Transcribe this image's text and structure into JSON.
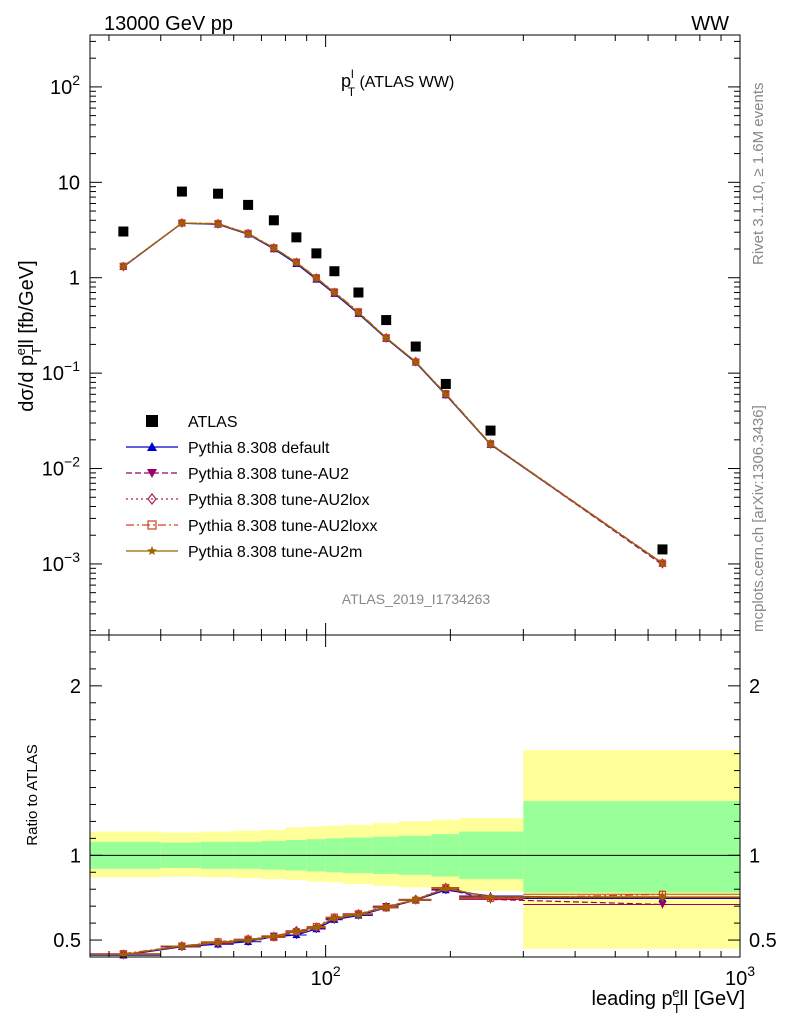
{
  "header": {
    "process": "13000 GeV pp",
    "final_state": "WW",
    "analysis_id": "ATLAS_2019_I1734263",
    "side_top": "Rivet 3.1.10, ≥ 1.6M events",
    "side_bottom": "mcplots.cern.ch [arXiv:1306.3436]"
  },
  "chart_data": [
    {
      "panel": "main",
      "type": "scatter",
      "title": "p_T^l (ATLAS WW)",
      "title_main": "p",
      "title_sup": "l",
      "title_sub": "T",
      "title_rest": " (ATLAS WW)",
      "ylabel": "dσ/d p_T^e ll [fb/GeV]",
      "ylabel_a": "dσ/d p",
      "ylabel_sub": "T",
      "ylabel_sup": "e",
      "ylabel_b": "ll [fb/GeV]",
      "yscale": "log",
      "xscale": "log",
      "xlim": [
        27,
        1000
      ],
      "ylim": [
        0.00018,
        350
      ],
      "y_ticks": [
        {
          "value": 100,
          "base": "10",
          "exp": "2"
        },
        {
          "value": 10,
          "base": "10",
          "exp": ""
        },
        {
          "value": 1,
          "base": "1",
          "exp": ""
        },
        {
          "value": 0.1,
          "base": "10",
          "exp": "−1"
        },
        {
          "value": 0.01,
          "base": "10",
          "exp": "−2"
        },
        {
          "value": 0.001,
          "base": "10",
          "exp": "−3"
        }
      ],
      "x": [
        32.5,
        45,
        55,
        65,
        75,
        85,
        95,
        105,
        120,
        140,
        165,
        195,
        250,
        650
      ],
      "xerr_low": [
        27,
        40,
        50,
        60,
        70,
        80,
        90,
        100,
        110,
        130,
        150,
        180,
        210,
        300
      ],
      "xerr_high": [
        40,
        50,
        60,
        70,
        80,
        90,
        100,
        110,
        130,
        150,
        180,
        210,
        300,
        1000
      ],
      "legend_position": "lower-left",
      "series": [
        {
          "name": "ATLAS",
          "color": "#000000",
          "marker": "square",
          "line": "none",
          "values": [
            3.05,
            8.0,
            7.6,
            5.8,
            4.0,
            2.65,
            1.8,
            1.17,
            0.7,
            0.36,
            0.19,
            0.077,
            0.025,
            0.00142
          ]
        },
        {
          "name": "Pythia 8.308 default",
          "color": "#0000cc",
          "marker": "triangle-up",
          "line": "solid",
          "values": [
            1.3,
            3.72,
            3.62,
            2.85,
            2.0,
            1.4,
            0.96,
            0.68,
            0.42,
            0.23,
            0.129,
            0.059,
            0.0178,
            0.00101
          ]
        },
        {
          "name": "Pythia 8.308 tune-AU2",
          "color": "#990066",
          "marker": "triangle-down",
          "line": "dashed",
          "values": [
            1.31,
            3.74,
            3.65,
            2.88,
            2.04,
            1.43,
            0.98,
            0.7,
            0.43,
            0.235,
            0.131,
            0.06,
            0.018,
            0.00098
          ]
        },
        {
          "name": "Pythia 8.308 tune-AU2lox",
          "color": "#aa2244",
          "marker": "diamond",
          "line": "dotted",
          "values": [
            1.31,
            3.75,
            3.68,
            2.9,
            2.05,
            1.45,
            0.99,
            0.7,
            0.43,
            0.234,
            0.132,
            0.06,
            0.0181,
            0.00102
          ]
        },
        {
          "name": "Pythia 8.308 tune-AU2loxx",
          "color": "#cc4422",
          "marker": "square-open",
          "line": "dashdot",
          "values": [
            1.32,
            3.75,
            3.7,
            2.92,
            2.06,
            1.46,
            1.0,
            0.71,
            0.44,
            0.235,
            0.131,
            0.061,
            0.0182,
            0.00102
          ]
        },
        {
          "name": "Pythia 8.308 tune-AU2m",
          "color": "#996600",
          "marker": "star",
          "line": "solid",
          "values": [
            1.31,
            3.74,
            3.67,
            2.89,
            2.05,
            1.44,
            0.99,
            0.7,
            0.43,
            0.234,
            0.131,
            0.06,
            0.0181,
            0.00101
          ]
        }
      ]
    },
    {
      "panel": "ratio",
      "type": "line",
      "ylabel": "Ratio to ATLAS",
      "xlabel": "leading p_T^e ll [GeV]",
      "xlabel_a": "leading p",
      "xlabel_sub": "T",
      "xlabel_sup": "e",
      "xlabel_b": "ll [GeV]",
      "xscale": "log",
      "xlim": [
        27,
        1000
      ],
      "ylim": [
        0.4,
        2.3
      ],
      "y_ticks": [
        "0.5",
        "1",
        "2"
      ],
      "x_ticks": [
        {
          "value": 100,
          "base": "10",
          "exp": "2"
        },
        {
          "value": 1000,
          "base": "10",
          "exp": "3"
        }
      ],
      "reference": 1,
      "band_edges": [
        27,
        40,
        50,
        60,
        70,
        80,
        90,
        100,
        110,
        130,
        150,
        180,
        210,
        300,
        1000
      ],
      "stat_band": [
        [
          0.92,
          1.08
        ],
        [
          0.925,
          1.075
        ],
        [
          0.92,
          1.08
        ],
        [
          0.92,
          1.08
        ],
        [
          0.915,
          1.085
        ],
        [
          0.91,
          1.09
        ],
        [
          0.905,
          1.095
        ],
        [
          0.9,
          1.1
        ],
        [
          0.895,
          1.105
        ],
        [
          0.89,
          1.11
        ],
        [
          0.885,
          1.115
        ],
        [
          0.875,
          1.125
        ],
        [
          0.86,
          1.14
        ],
        [
          0.78,
          1.32
        ]
      ],
      "total_band": [
        [
          0.87,
          1.14
        ],
        [
          0.875,
          1.135
        ],
        [
          0.87,
          1.14
        ],
        [
          0.865,
          1.145
        ],
        [
          0.86,
          1.15
        ],
        [
          0.855,
          1.165
        ],
        [
          0.845,
          1.17
        ],
        [
          0.84,
          1.175
        ],
        [
          0.83,
          1.18
        ],
        [
          0.82,
          1.19
        ],
        [
          0.81,
          1.2
        ],
        [
          0.8,
          1.21
        ],
        [
          0.79,
          1.22
        ],
        [
          0.45,
          1.62
        ]
      ],
      "series": [
        {
          "name": "Pythia 8.308 default",
          "values": [
            0.41,
            0.46,
            0.475,
            0.49,
            0.52,
            0.53,
            0.565,
            0.62,
            0.645,
            0.69,
            0.735,
            0.795,
            0.76,
            0.745
          ]
        },
        {
          "name": "Pythia 8.308 tune-AU2",
          "values": [
            0.415,
            0.46,
            0.48,
            0.5,
            0.525,
            0.545,
            0.57,
            0.625,
            0.65,
            0.7,
            0.735,
            0.8,
            0.74,
            0.71
          ]
        },
        {
          "name": "Pythia 8.308 tune-AU2lox",
          "values": [
            0.415,
            0.465,
            0.485,
            0.505,
            0.52,
            0.555,
            0.575,
            0.63,
            0.655,
            0.695,
            0.74,
            0.81,
            0.75,
            0.75
          ]
        },
        {
          "name": "Pythia 8.308 tune-AU2loxx",
          "values": [
            0.42,
            0.465,
            0.49,
            0.505,
            0.515,
            0.55,
            0.58,
            0.635,
            0.655,
            0.69,
            0.735,
            0.81,
            0.745,
            0.77
          ]
        },
        {
          "name": "Pythia 8.308 tune-AU2m",
          "values": [
            0.415,
            0.465,
            0.485,
            0.5,
            0.525,
            0.55,
            0.575,
            0.63,
            0.65,
            0.695,
            0.74,
            0.805,
            0.755,
            0.755
          ]
        }
      ]
    }
  ]
}
